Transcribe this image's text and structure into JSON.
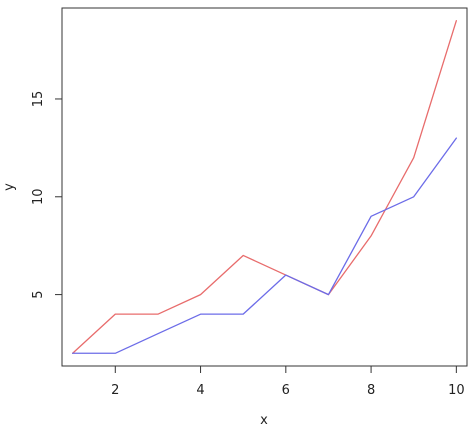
{
  "chart_data": {
    "type": "line",
    "xlabel": "x",
    "ylabel": "y",
    "xlim": [
      0.75,
      10.25
    ],
    "ylim": [
      1.35,
      19.65
    ],
    "x_ticks": [
      2,
      4,
      6,
      8,
      10
    ],
    "y_ticks": [
      5,
      10,
      15
    ],
    "grid": false,
    "legend": "none",
    "x": [
      1,
      2,
      3,
      4,
      5,
      6,
      7,
      8,
      9,
      10
    ],
    "series": [
      {
        "color": "#e86c6c",
        "values": [
          2,
          4,
          4,
          5,
          7,
          6,
          5,
          8,
          12,
          19
        ]
      },
      {
        "color": "#6c6ce8",
        "values": [
          2,
          2,
          3,
          4,
          4,
          6,
          5,
          9,
          10,
          13
        ]
      }
    ]
  }
}
